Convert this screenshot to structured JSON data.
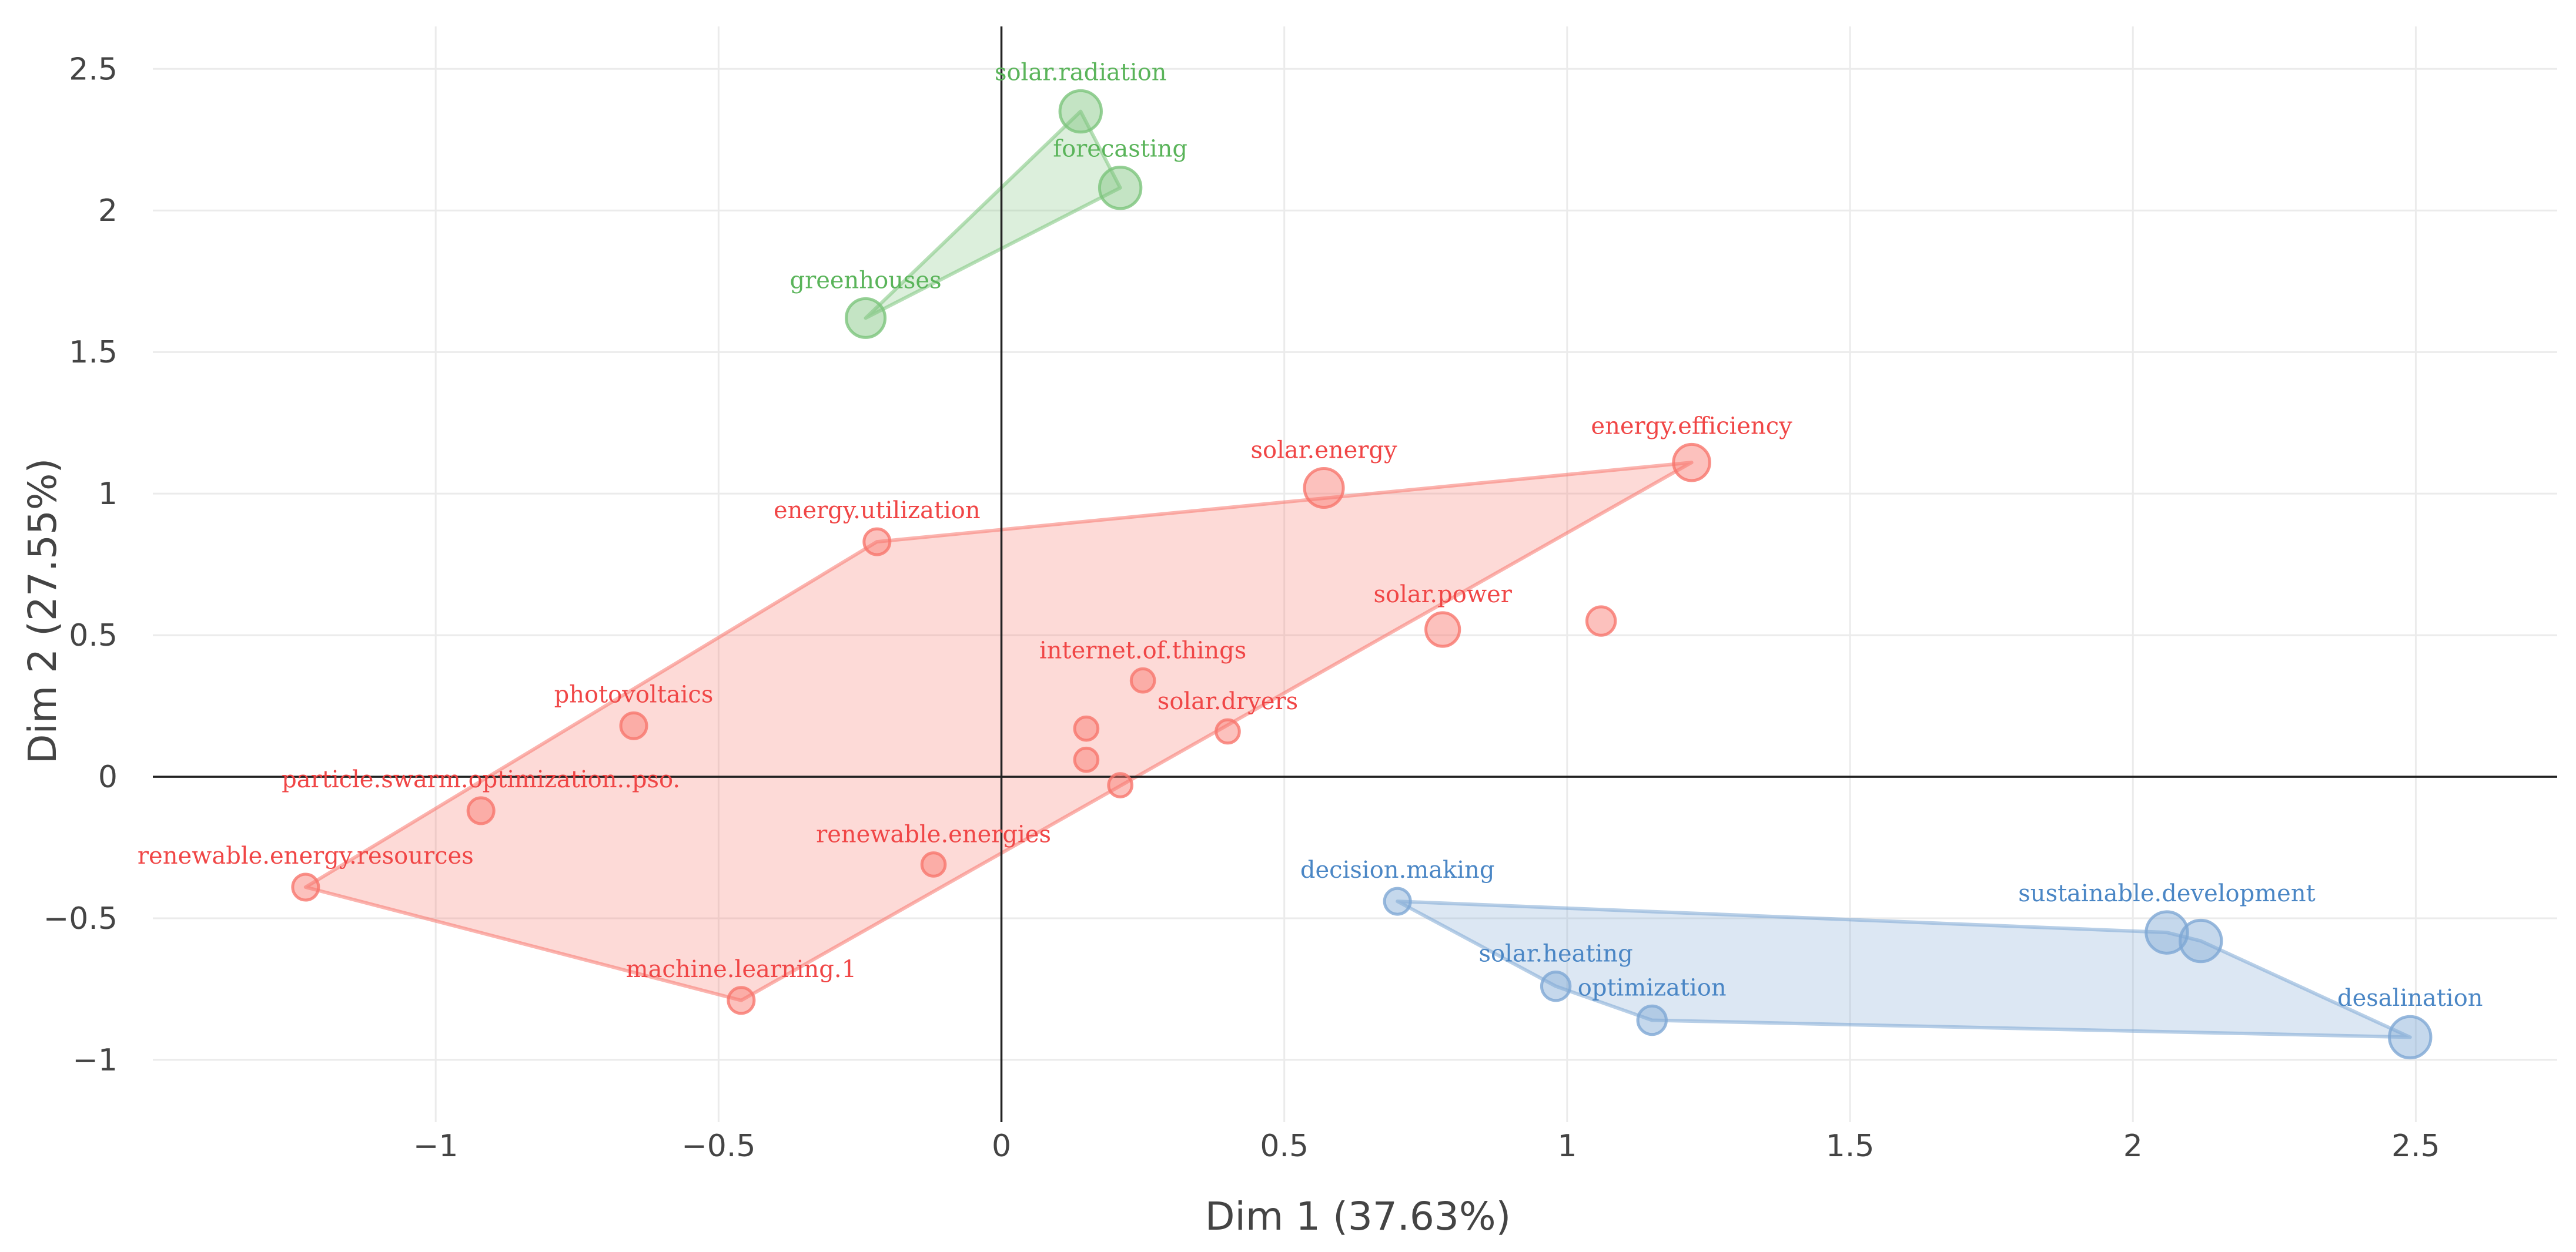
{
  "chart_data": {
    "type": "scatter",
    "xlabel": "Dim 1 (37.63%)",
    "ylabel": "Dim 2 (27.55%)",
    "xlim": [
      -1.5,
      2.75
    ],
    "ylim": [
      -1.22,
      2.65
    ],
    "xticks": [
      -1,
      -0.5,
      0,
      0.5,
      1,
      1.5,
      2,
      2.5
    ],
    "yticks": [
      -1,
      -0.5,
      0,
      0.5,
      1,
      1.5,
      2,
      2.5
    ],
    "xtick_labels": [
      "−1",
      "−0.5",
      "0",
      "0.5",
      "1",
      "1.5",
      "2",
      "2.5"
    ],
    "ytick_labels": [
      "−1",
      "−0.5",
      "0",
      "0.5",
      "1",
      "1.5",
      "2",
      "2.5"
    ],
    "grid": true,
    "legend": "none",
    "clusters": [
      {
        "id": "cluster-1",
        "color": "#F8766D",
        "text_color": "#F04646",
        "hull": [
          "renewable.energy.resources",
          "energy.utilization",
          "energy.efficiency",
          "p14",
          "machine.learning.1"
        ],
        "points": [
          {
            "label": "renewable.energy.resources",
            "x": -1.23,
            "y": -0.39,
            "size": 1.0
          },
          {
            "label": "particle.swarm.optimization..pso.",
            "x": -0.92,
            "y": -0.12,
            "size": 1.0
          },
          {
            "label": "photovoltaics",
            "x": -0.65,
            "y": 0.18,
            "size": 1.0
          },
          {
            "label": "machine.learning.1",
            "x": -0.46,
            "y": -0.79,
            "size": 1.0
          },
          {
            "label": "energy.utilization",
            "x": -0.22,
            "y": 0.83,
            "size": 1.0
          },
          {
            "label": "renewable.energies",
            "x": -0.12,
            "y": -0.31,
            "size": 0.9
          },
          {
            "label": "",
            "x": 0.15,
            "y": 0.06,
            "size": 0.9
          },
          {
            "label": "",
            "x": 0.15,
            "y": 0.17,
            "size": 0.9
          },
          {
            "label": "",
            "x": 0.21,
            "y": -0.03,
            "size": 0.9
          },
          {
            "label": "internet.of.things",
            "x": 0.25,
            "y": 0.34,
            "size": 0.9
          },
          {
            "label": "solar.dryers",
            "x": 0.4,
            "y": 0.16,
            "size": 0.9
          },
          {
            "label": "solar.energy",
            "x": 0.57,
            "y": 1.02,
            "size": 1.5
          },
          {
            "label": "solar.power",
            "x": 0.78,
            "y": 0.52,
            "size": 1.3
          },
          {
            "label": "",
            "x": 1.06,
            "y": 0.55,
            "size": 1.1
          },
          {
            "label": "energy.efficiency",
            "x": 1.22,
            "y": 1.11,
            "size": 1.4
          }
        ]
      },
      {
        "id": "cluster-2",
        "color": "#7CC47C",
        "text_color": "#5AB45A",
        "hull": [
          "greenhouses",
          "solar.radiation",
          "forecasting"
        ],
        "points": [
          {
            "label": "greenhouses",
            "x": -0.24,
            "y": 1.62,
            "size": 1.5
          },
          {
            "label": "solar.radiation",
            "x": 0.14,
            "y": 2.35,
            "size": 1.6
          },
          {
            "label": "forecasting",
            "x": 0.21,
            "y": 2.08,
            "size": 1.6
          }
        ]
      },
      {
        "id": "cluster-3",
        "color": "#7EA8D4",
        "text_color": "#4A86C5",
        "hull": [
          "decision.making",
          "sustainable.development",
          "p4",
          "desalination",
          "optimization",
          "solar.heating"
        ],
        "points": [
          {
            "label": "decision.making",
            "x": 0.7,
            "y": -0.44,
            "size": 1.0
          },
          {
            "label": "solar.heating",
            "x": 0.98,
            "y": -0.74,
            "size": 1.1
          },
          {
            "label": "optimization",
            "x": 1.15,
            "y": -0.86,
            "size": 1.1
          },
          {
            "label": "sustainable.development",
            "x": 2.06,
            "y": -0.55,
            "size": 1.6
          },
          {
            "label": "",
            "x": 2.12,
            "y": -0.58,
            "size": 1.6
          },
          {
            "label": "desalination",
            "x": 2.49,
            "y": -0.92,
            "size": 1.6
          }
        ]
      }
    ]
  }
}
